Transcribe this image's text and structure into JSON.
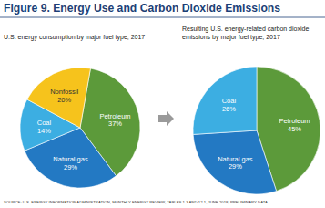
{
  "title": "Figure 9. Energy Use and Carbon Dioxide Emissions",
  "source": "SOURCE: U.S. ENERGY INFORMATION ADMINISTRATION, MONTHLY ENERGY REVIEW, TABLES 1.3 AND 12.1, JUNE 2018, PRELIMINARY DATA.",
  "chart_data": [
    {
      "type": "pie",
      "title": "U.S. energy consumption by major fuel type, 2017",
      "categories": [
        "Petroleum",
        "Natural gas",
        "Coal",
        "Nonfossil"
      ],
      "values": [
        37,
        29,
        14,
        20
      ],
      "value_labels": [
        "37%",
        "29%",
        "14%",
        "20%"
      ],
      "colors": [
        "#5c9a3a",
        "#2379c3",
        "#3caee2",
        "#f6c31c"
      ],
      "data_labels": true
    },
    {
      "type": "pie",
      "title": "Resulting U.S. energy-related carbon dioxide emissions by major fuel type, 2017",
      "categories": [
        "Petroleum",
        "Natural gas",
        "Coal"
      ],
      "values": [
        45,
        29,
        26
      ],
      "value_labels": [
        "45%",
        "29%",
        "26%"
      ],
      "colors": [
        "#5c9a3a",
        "#2379c3",
        "#3caee2"
      ],
      "data_labels": true
    }
  ]
}
